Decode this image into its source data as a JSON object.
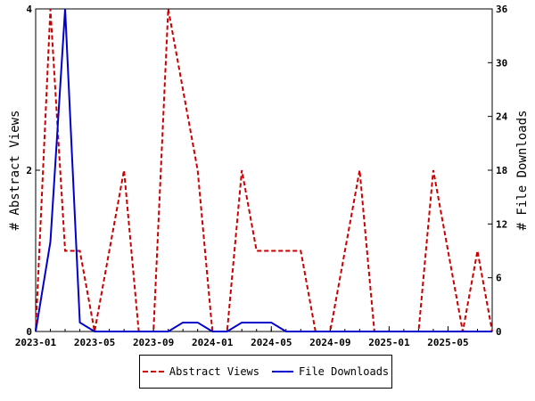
{
  "chart_data": {
    "type": "line",
    "x": [
      "2023-01",
      "2023-02",
      "2023-03",
      "2023-04",
      "2023-05",
      "2023-06",
      "2023-07",
      "2023-08",
      "2023-09",
      "2023-10",
      "2023-11",
      "2023-12",
      "2024-01",
      "2024-02",
      "2024-03",
      "2024-04",
      "2024-05",
      "2024-06",
      "2024-07",
      "2024-08",
      "2024-09",
      "2024-10",
      "2024-11",
      "2024-12",
      "2025-01",
      "2025-02",
      "2025-03",
      "2025-04",
      "2025-05",
      "2025-06",
      "2025-07",
      "2025-08"
    ],
    "x_tick_labels": [
      "2023-01",
      "2023-05",
      "2023-09",
      "2024-01",
      "2024-05",
      "2024-09",
      "2025-01",
      "2025-05"
    ],
    "series": [
      {
        "name": "Abstract Views",
        "axis": "left",
        "color": "#cc0000",
        "dash": "dashed",
        "values": [
          0,
          4,
          1,
          1,
          0,
          1,
          2,
          0,
          0,
          4,
          3,
          2,
          0,
          0,
          2,
          1,
          1,
          1,
          1,
          0,
          0,
          1,
          2,
          0,
          0,
          0,
          0,
          2,
          1,
          0,
          1,
          0
        ]
      },
      {
        "name": "File Downloads",
        "axis": "right",
        "color": "#0000cc",
        "dash": "solid",
        "values": [
          0,
          10,
          36,
          1,
          0,
          0,
          0,
          0,
          0,
          0,
          1,
          1,
          0,
          0,
          1,
          1,
          1,
          0,
          0,
          0,
          0,
          0,
          0,
          0,
          0,
          0,
          0,
          0,
          0,
          0,
          0,
          0
        ]
      }
    ],
    "y_left": {
      "label": "# Abstract Views",
      "range": [
        0,
        4
      ],
      "ticks": [
        "0",
        "2",
        "4"
      ],
      "tick_values": [
        0,
        2,
        4
      ]
    },
    "y_right": {
      "label": "# File Downloads",
      "range": [
        0,
        36
      ],
      "ticks": [
        "0",
        "6",
        "12",
        "18",
        "24",
        "30",
        "36"
      ],
      "tick_values": [
        0,
        6,
        12,
        18,
        24,
        30,
        36
      ]
    },
    "legend_position": "bottom-center",
    "grid": false
  }
}
